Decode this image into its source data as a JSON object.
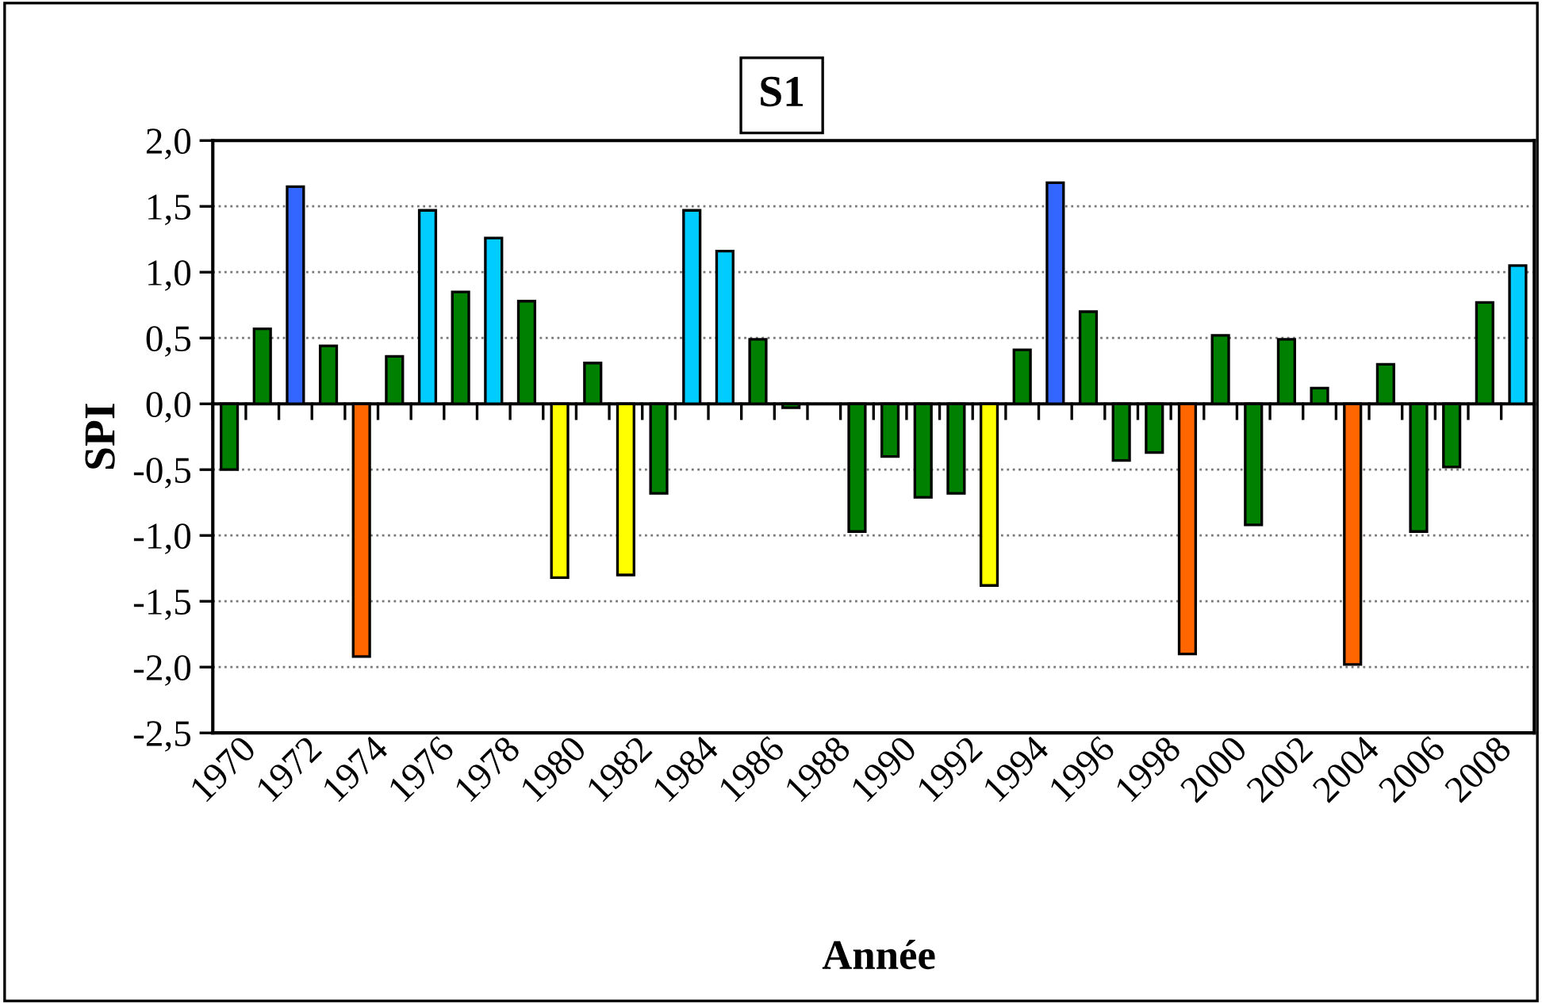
{
  "chart_data": {
    "type": "bar",
    "title": "S1",
    "xlabel": "Année",
    "ylabel": "SPI",
    "categories": [
      "1970",
      null,
      "1972",
      null,
      "1974",
      null,
      "1976",
      null,
      "1978",
      null,
      "1980",
      null,
      "1982",
      null,
      "1984",
      null,
      "1986",
      null,
      "1988",
      null,
      "1990",
      null,
      "1992",
      null,
      "1994",
      null,
      "1996",
      null,
      "1998",
      null,
      "2000",
      null,
      "2002",
      null,
      "2004",
      null,
      "2006",
      null,
      "2008",
      null
    ],
    "values": [
      -0.5,
      0.57,
      1.65,
      0.44,
      -1.92,
      0.36,
      1.47,
      0.85,
      1.26,
      0.78,
      -1.32,
      0.31,
      -1.3,
      -0.68,
      1.47,
      1.16,
      0.49,
      -0.03,
      null,
      -0.97,
      -0.4,
      -0.71,
      -0.68,
      -1.38,
      0.41,
      1.68,
      0.7,
      -0.43,
      -0.37,
      -1.9,
      0.52,
      -0.92,
      0.49,
      0.12,
      -1.98,
      0.3,
      -0.97,
      -0.48,
      0.77,
      1.05
    ],
    "colors": [
      "#008000",
      "#008000",
      "#3366ff",
      "#008000",
      "#ff6600",
      "#008000",
      "#00ccff",
      "#008000",
      "#00ccff",
      "#008000",
      "#ffff00",
      "#008000",
      "#ffff00",
      "#008000",
      "#00ccff",
      "#00ccff",
      "#008000",
      "#008000",
      "#008000",
      "#008000",
      "#008000",
      "#008000",
      "#008000",
      "#ffff00",
      "#008000",
      "#3366ff",
      "#008000",
      "#008000",
      "#008000",
      "#ff6600",
      "#008000",
      "#008000",
      "#008000",
      "#008000",
      "#ff6600",
      "#008000",
      "#008000",
      "#008000",
      "#008000",
      "#00ccff"
    ],
    "ylim": [
      -2.5,
      2.0
    ],
    "yticks": [
      {
        "value": -2.5,
        "label": "-2,5"
      },
      {
        "value": -2.0,
        "label": "-2,0"
      },
      {
        "value": -1.5,
        "label": "-1,5"
      },
      {
        "value": -1.0,
        "label": "-1,0"
      },
      {
        "value": -0.5,
        "label": "-0,5"
      },
      {
        "value": 0.0,
        "label": "0,0"
      },
      {
        "value": 0.5,
        "label": "0,5"
      },
      {
        "value": 1.0,
        "label": "1,0"
      },
      {
        "value": 1.5,
        "label": "1,5"
      },
      {
        "value": 2.0,
        "label": "2,0"
      }
    ],
    "grid": "y",
    "legend": false
  }
}
